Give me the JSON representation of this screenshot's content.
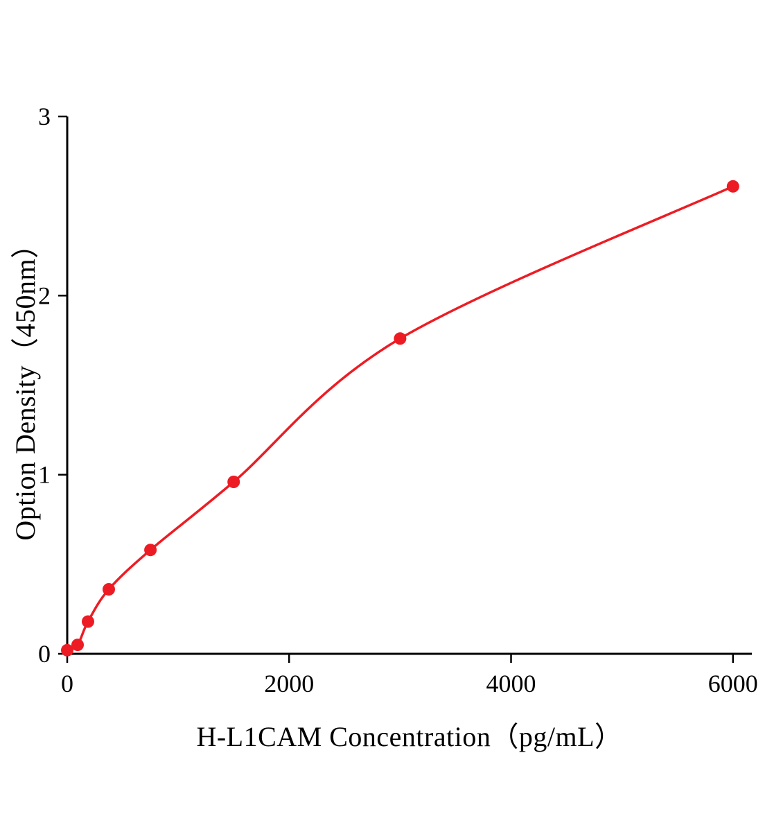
{
  "chart_data": {
    "type": "scatter",
    "title": "",
    "xlabel": "H-L1CAM Concentration（pg/mL）",
    "ylabel": "Option Density（450nm）",
    "x": [
      0,
      93.75,
      187.5,
      375,
      750,
      1500,
      3000,
      6000
    ],
    "y": [
      0.02,
      0.05,
      0.18,
      0.36,
      0.58,
      0.96,
      1.76,
      2.61
    ],
    "xlim": [
      0,
      6170
    ],
    "ylim": [
      0,
      3
    ],
    "xticks": [
      0,
      2000,
      4000,
      6000
    ],
    "yticks": [
      0,
      1,
      2,
      3
    ],
    "grid": false,
    "legend_position": "none",
    "marker_color": "#ed1c24",
    "line_color": "#ed1c24",
    "axis_color": "#000000",
    "fit_style": "smooth saturation curve through data points"
  }
}
